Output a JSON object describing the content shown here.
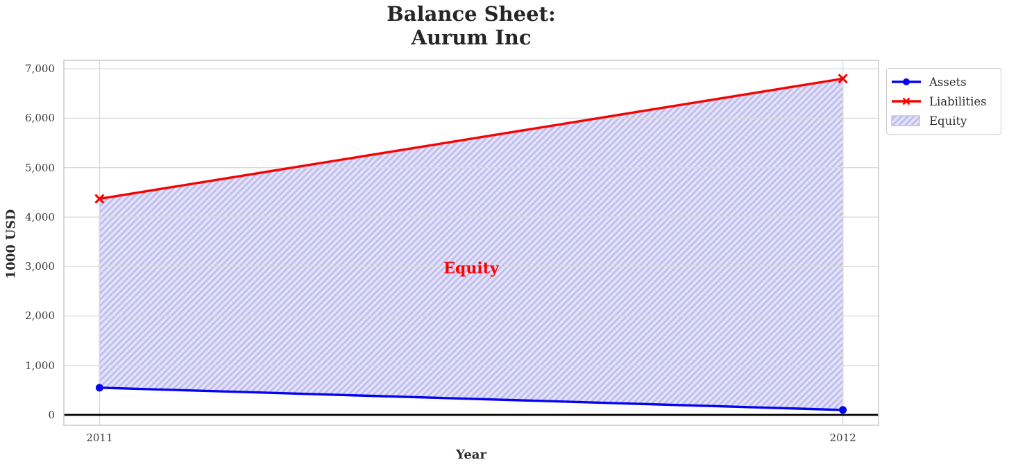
{
  "chart_data": {
    "type": "line",
    "title": "Balance Sheet:\nAurum Inc",
    "title_lines": [
      "Balance Sheet:",
      "Aurum Inc"
    ],
    "xlabel": "Year",
    "ylabel": "1000 USD",
    "x": [
      2011,
      2012
    ],
    "series": [
      {
        "name": "Assets",
        "values": [
          550,
          100
        ],
        "color": "#0504f2",
        "marker": "circle"
      },
      {
        "name": "Liabilities",
        "values": [
          4370,
          6800
        ],
        "color": "#f40400",
        "marker": "x"
      }
    ],
    "equity_fill": {
      "label": "Equity",
      "between": [
        "Assets",
        "Liabilities"
      ],
      "face_color": "#e3e2f8",
      "hatch_color": "#bdbcee",
      "hatch": "///"
    },
    "annotation": {
      "text": "Equity",
      "x": 2011.5,
      "y": 2960,
      "color": "#ff0000"
    },
    "xlim": [
      2010.952,
      2012.048
    ],
    "ylim": [
      -210,
      7170
    ],
    "yticks": [
      0,
      1000,
      2000,
      3000,
      4000,
      5000,
      6000,
      7000
    ],
    "ytick_labels": [
      "0",
      "1,000",
      "2,000",
      "3,000",
      "4,000",
      "5,000",
      "6,000",
      "7,000"
    ],
    "xticks": [
      2011,
      2012
    ],
    "xtick_labels": [
      "2011",
      "2012"
    ],
    "grid": true,
    "legend_position": "outside-top-right",
    "legend_entries": [
      "Assets",
      "Liabilities",
      "Equity"
    ],
    "zero_line_color": "#000000",
    "grid_color": "#d9d9d9",
    "spine_color": "#cccccc"
  }
}
